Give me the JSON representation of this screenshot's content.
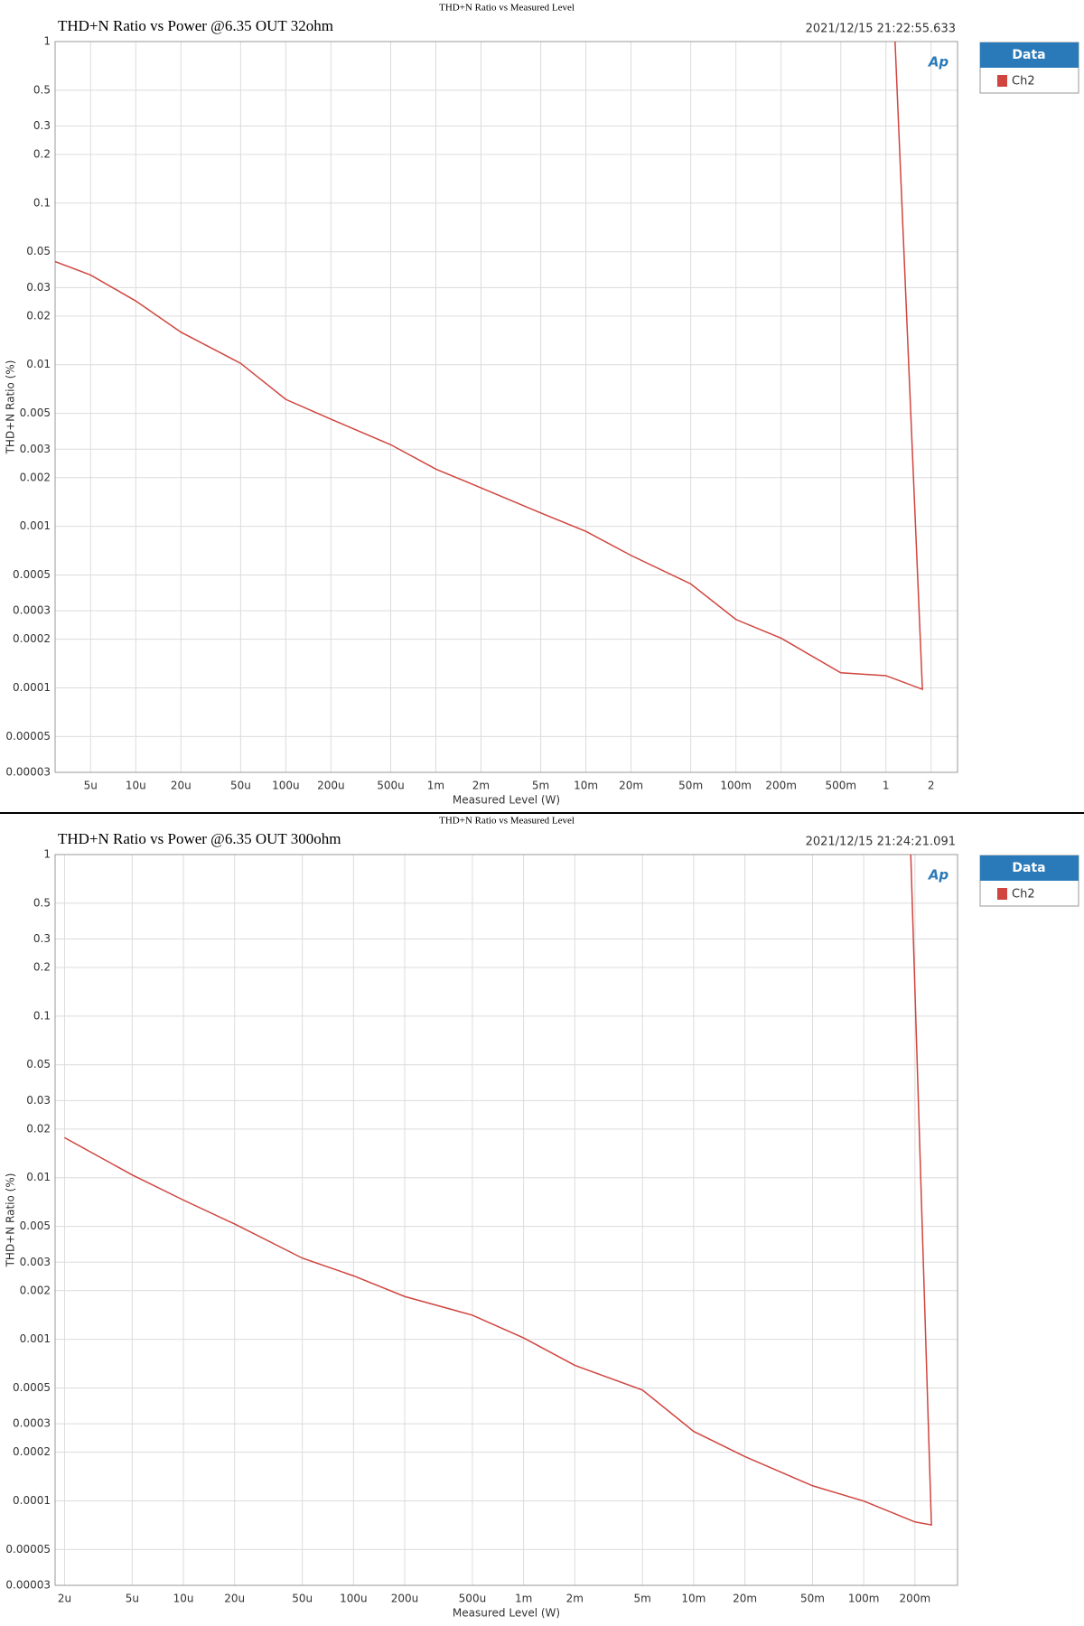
{
  "chart_data": [
    {
      "type": "line",
      "heading": "THD+N Ratio vs Measured Level",
      "title": "THD+N Ratio vs Power @6.35 OUT 32ohm",
      "timestamp": "2021/12/15 21:22:55.633",
      "xlabel": "Measured Level (W)",
      "ylabel": "THD+N Ratio (%)",
      "legend_title": "Data",
      "logo": "Ap",
      "xscale": "log",
      "yscale": "log",
      "grid": true,
      "xlim": [
        2.9e-06,
        3
      ],
      "ylim": [
        3e-05,
        1
      ],
      "xticks": [
        {
          "value": 5e-06,
          "label": "5u"
        },
        {
          "value": 1e-05,
          "label": "10u"
        },
        {
          "value": 2e-05,
          "label": "20u"
        },
        {
          "value": 5e-05,
          "label": "50u"
        },
        {
          "value": 0.0001,
          "label": "100u"
        },
        {
          "value": 0.0002,
          "label": "200u"
        },
        {
          "value": 0.0005,
          "label": "500u"
        },
        {
          "value": 0.001,
          "label": "1m"
        },
        {
          "value": 0.002,
          "label": "2m"
        },
        {
          "value": 0.005,
          "label": "5m"
        },
        {
          "value": 0.01,
          "label": "10m"
        },
        {
          "value": 0.02,
          "label": "20m"
        },
        {
          "value": 0.05,
          "label": "50m"
        },
        {
          "value": 0.1,
          "label": "100m"
        },
        {
          "value": 0.2,
          "label": "200m"
        },
        {
          "value": 0.5,
          "label": "500m"
        },
        1,
        2
      ],
      "yticks": [
        1,
        0.5,
        0.3,
        0.2,
        0.1,
        0.05,
        0.03,
        0.02,
        0.01,
        0.005,
        0.003,
        0.002,
        0.001,
        0.0005,
        0.0003,
        0.0002,
        0.0001,
        5e-05,
        3e-05
      ],
      "x": [
        2.9e-06,
        5e-06,
        1e-05,
        2e-05,
        5e-05,
        0.0001,
        0.0002,
        0.0005,
        0.001,
        0.002,
        0.005,
        0.01,
        0.02,
        0.05,
        0.1,
        0.2,
        0.5,
        1,
        1.75,
        1.15
      ],
      "series": [
        {
          "name": "Ch2",
          "color": "#d0453f",
          "values": [
            0.0435,
            0.0359,
            0.0248,
            0.0159,
            0.0102,
            0.0061,
            0.0046,
            0.0032,
            0.00226,
            0.00173,
            0.00121,
            0.00093,
            0.00066,
            0.00044,
            0.000265,
            0.000203,
            0.000124,
            0.000119,
            9.8e-05,
            1
          ]
        }
      ]
    },
    {
      "type": "line",
      "heading": "THD+N Ratio vs Measured Level",
      "title": "THD+N Ratio vs Power @6.35 OUT 300ohm",
      "timestamp": "2021/12/15 21:24:21.091",
      "xlabel": "Measured Level (W)",
      "ylabel": "THD+N Ratio (%)",
      "legend_title": "Data",
      "logo": "Ap",
      "xscale": "log",
      "yscale": "log",
      "grid": true,
      "xlim": [
        1.76e-06,
        0.356
      ],
      "ylim": [
        3e-05,
        1
      ],
      "xticks": [
        {
          "value": 2e-06,
          "label": "2u"
        },
        {
          "value": 5e-06,
          "label": "5u"
        },
        {
          "value": 1e-05,
          "label": "10u"
        },
        {
          "value": 2e-05,
          "label": "20u"
        },
        {
          "value": 5e-05,
          "label": "50u"
        },
        {
          "value": 0.0001,
          "label": "100u"
        },
        {
          "value": 0.0002,
          "label": "200u"
        },
        {
          "value": 0.0005,
          "label": "500u"
        },
        {
          "value": 0.001,
          "label": "1m"
        },
        {
          "value": 0.002,
          "label": "2m"
        },
        {
          "value": 0.005,
          "label": "5m"
        },
        {
          "value": 0.01,
          "label": "10m"
        },
        {
          "value": 0.02,
          "label": "20m"
        },
        {
          "value": 0.05,
          "label": "50m"
        },
        {
          "value": 0.1,
          "label": "100m"
        },
        {
          "value": 0.2,
          "label": "200m"
        }
      ],
      "yticks": [
        1,
        0.5,
        0.3,
        0.2,
        0.1,
        0.05,
        0.03,
        0.02,
        0.01,
        0.005,
        0.003,
        0.002,
        0.001,
        0.0005,
        0.0003,
        0.0002,
        0.0001,
        5e-05,
        3e-05
      ],
      "x": [
        2e-06,
        5e-06,
        1e-05,
        2e-05,
        5e-05,
        0.0001,
        0.0002,
        0.0005,
        0.001,
        0.002,
        0.005,
        0.01,
        0.02,
        0.05,
        0.1,
        0.2,
        0.25,
        0.189
      ],
      "series": [
        {
          "name": "Ch2",
          "color": "#d0453f",
          "values": [
            0.0177,
            0.0104,
            0.00727,
            0.00517,
            0.00318,
            0.00247,
            0.00184,
            0.00141,
            0.00102,
            0.00069,
            0.000485,
            0.000269,
            0.000188,
            0.000124,
            9.97e-05,
            7.41e-05,
            7.1e-05,
            1
          ]
        }
      ]
    }
  ]
}
